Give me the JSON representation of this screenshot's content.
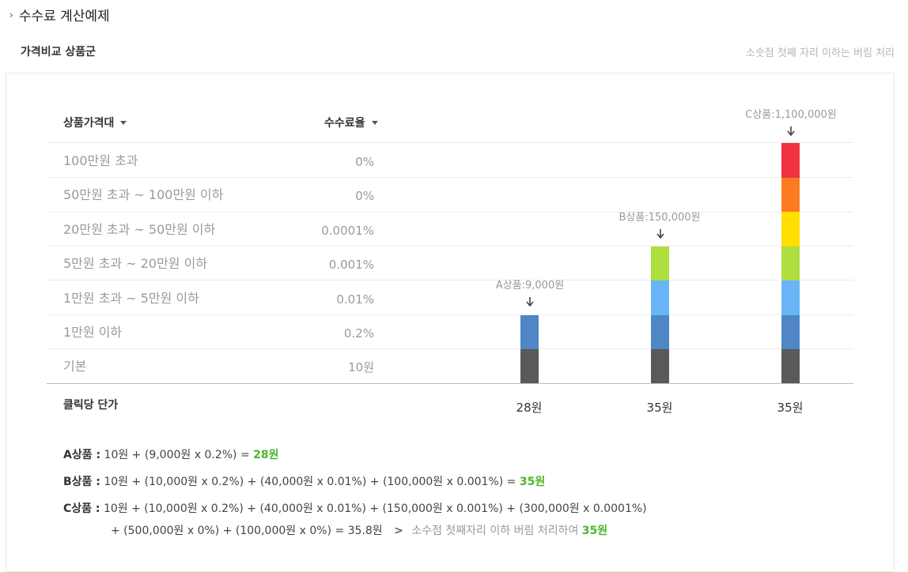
{
  "header": {
    "title": "수수료 계산예제",
    "subtitle": "가격비교 상품군",
    "note": "소숫점 첫째 자리 이하는 버림 처리"
  },
  "table": {
    "col_price": "상품가격대",
    "col_rate": "수수료율",
    "rows": [
      {
        "range": "100만원 초과",
        "rate": "0%",
        "color": "#ef3340"
      },
      {
        "range": "50만원 초과 ~ 100만원 이하",
        "rate": "0%",
        "color": "#fc7a22"
      },
      {
        "range": "20만원 초과 ~ 50만원 이하",
        "rate": "0.0001%",
        "color": "#ffde00"
      },
      {
        "range": "5만원 초과 ~ 20만원 이하",
        "rate": "0.001%",
        "color": "#afde3f"
      },
      {
        "range": "1만원 초과 ~ 5만원 이하",
        "rate": "0.01%",
        "color": "#69b5f8"
      },
      {
        "range": "1만원 이하",
        "rate": "0.2%",
        "color": "#4f86c6"
      },
      {
        "range": "기본",
        "rate": "10원",
        "color": "#595959"
      }
    ],
    "click_label": "클릭당 단가"
  },
  "products": [
    {
      "label": "A상품:9,000원",
      "price": "28원",
      "segments": 2
    },
    {
      "label": "B상품:150,000원",
      "price": "35원",
      "segments": 4
    },
    {
      "label": "C상품:1,100,000원",
      "price": "35원",
      "segments": 7
    }
  ],
  "formulas": {
    "a": {
      "name": "A상품 :",
      "expr": "10원 + (9,000원 x 0.2%) =",
      "result": "28원"
    },
    "b": {
      "name": "B상품 :",
      "expr": "10원 + (10,000원 x 0.2%) + (40,000원 x 0.01%) + (100,000원 x 0.001%) =",
      "result": "35원"
    },
    "c": {
      "name": "C상품 :",
      "expr1": "10원 + (10,000원 x 0.2%) + (40,000원 x 0.01%) + (150,000원 x 0.001%) + (300,000원 x 0.0001%)",
      "expr2": "+ (500,000원 x 0%) + (100,000원 x 0%) = 35.8원",
      "gt": ">",
      "note": "소수점 첫째자리 이하 버림 처리하여",
      "result": "35원"
    }
  },
  "colors": {
    "accent_green": "#4db52c"
  }
}
